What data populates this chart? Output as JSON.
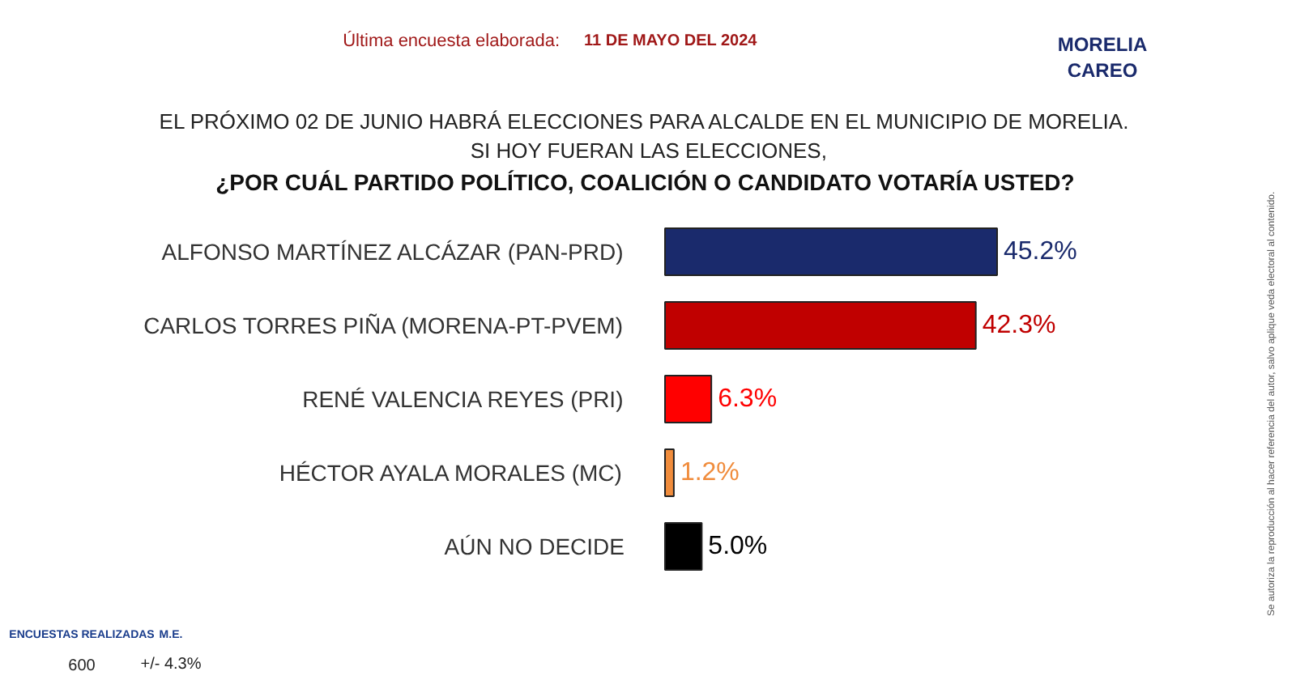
{
  "chart_data": {
    "type": "bar",
    "orientation": "horizontal",
    "title": "¿POR CUÁL PARTIDO POLÍTICO, COALICIÓN O CANDIDATO  VOTARÍA USTED?",
    "subtitle": "EL PRÓXIMO 02 DE JUNIO HABRÁ ELECCIONES PARA ALCALDE EN EL MUNICIPIO  DE MORELIA.\nSI HOY FUERAN LAS ELECCIONES,",
    "categories": [
      "ALFONSO MARTÍNEZ ALCÁZAR (PAN-PRD)",
      "CARLOS TORRES PIÑA (MORENA-PT-PVEM)",
      "RENÉ VALENCIA REYES (PRI)",
      "HÉCTOR AYALA MORALES (MC)",
      "AÚN NO DECIDE"
    ],
    "values": [
      45.2,
      42.3,
      6.3,
      1.2,
      5.0
    ],
    "value_labels": [
      "45.2%",
      "42.3%",
      "6.3%",
      "1.2%",
      "5.0%"
    ],
    "colors": [
      "#1a2a6c",
      "#c00000",
      "#ff0000",
      "#f08c3c",
      "#000000"
    ],
    "annotations": [
      "Última encuesta elaborada:",
      "11 DE MAYO DEL 2024",
      "MORELIA",
      "CAREO",
      "ENCUESTAS REALIZADAS",
      "M.E.",
      "600",
      "+/- 4.3%",
      "Se autoriza la reproducción al hacer referencia del autor, salvo aplique veda electoral al contenido."
    ],
    "grid": false
  }
}
